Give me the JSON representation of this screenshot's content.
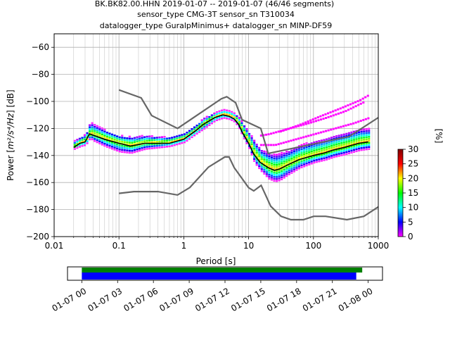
{
  "title": {
    "line1": "BK.BK82.00.HHN   2019-01-07 -- 2019-01-07  (46/46 segments)",
    "line2": "sensor_type CMG-3T sensor_sn T310034",
    "line3": "datalogger_type GuralpMinimus+ datalogger_sn MINP-DF59"
  },
  "chart_data": {
    "type": "heatmap",
    "xlabel": "Period [s]",
    "ylabel_prefix": "Power [",
    "ylabel_unit": "m²/s⁴/Hz",
    "ylabel_suffix": "] [dB]",
    "xscale": "log",
    "xlim": [
      0.01,
      1000
    ],
    "ylim": [
      -200,
      -50
    ],
    "x_ticks": [
      {
        "value": 0.01,
        "label": "0.01"
      },
      {
        "value": 0.1,
        "label": "0.1"
      },
      {
        "value": 1,
        "label": "1"
      },
      {
        "value": 10,
        "label": "10"
      },
      {
        "value": 100,
        "label": "100"
      },
      {
        "value": 1000,
        "label": "1000"
      }
    ],
    "y_ticks": [
      {
        "value": -60,
        "label": "−60"
      },
      {
        "value": -80,
        "label": "−80"
      },
      {
        "value": -100,
        "label": "−100"
      },
      {
        "value": -120,
        "label": "−120"
      },
      {
        "value": -140,
        "label": "−140"
      },
      {
        "value": -160,
        "label": "−160"
      },
      {
        "value": -180,
        "label": "−180"
      },
      {
        "value": -200,
        "label": "−200"
      }
    ],
    "grid": true,
    "noise_models": {
      "color": "#666666",
      "high": {
        "x": [
          0.1,
          0.22,
          0.32,
          0.8,
          3.8,
          4.6,
          6.3,
          7.9,
          15.4,
          20,
          354.8,
          1000
        ],
        "y": [
          -91.5,
          -97.4,
          -110.5,
          -120,
          -98,
          -96.5,
          -101,
          -113.5,
          -120,
          -138.5,
          -126,
          -112
        ]
      },
      "low": {
        "x": [
          0.1,
          0.17,
          0.4,
          0.8,
          1.24,
          2.4,
          4.3,
          5,
          6,
          10,
          12,
          15.6,
          21.9,
          31.6,
          45,
          70,
          101,
          154,
          328,
          600,
          1000
        ],
        "y": [
          -168,
          -166.7,
          -166.7,
          -169.2,
          -163.7,
          -148.6,
          -141.1,
          -141.1,
          -149,
          -163.8,
          -166.2,
          -162.1,
          -177.5,
          -185,
          -187.5,
          -187.5,
          -185,
          -185,
          -187.5,
          -185,
          -178
        ]
      }
    },
    "median": {
      "color": "#000000",
      "x": [
        0.02,
        0.025,
        0.03,
        0.035,
        0.04,
        0.06,
        0.1,
        0.15,
        0.25,
        0.4,
        0.6,
        1,
        1.5,
        2,
        3,
        4,
        5,
        6,
        7,
        8,
        10,
        12,
        15,
        20,
        25,
        30,
        40,
        60,
        100,
        150,
        200,
        300,
        500,
        700
      ],
      "y": [
        -134,
        -131,
        -130,
        -124,
        -125,
        -128,
        -131,
        -133,
        -131,
        -131,
        -131,
        -128,
        -122,
        -117,
        -112,
        -110,
        -111,
        -113,
        -117,
        -123,
        -131,
        -139,
        -145,
        -149,
        -151,
        -150,
        -147,
        -143,
        -140,
        -138,
        -136,
        -134,
        -131,
        -130
      ]
    },
    "ppsd_spread": {
      "x": [
        0.02,
        0.025,
        0.03,
        0.035,
        0.04,
        0.06,
        0.1,
        0.15,
        0.25,
        0.4,
        0.6,
        1,
        1.5,
        2,
        3,
        4,
        5,
        6,
        7,
        8,
        10,
        12,
        15,
        20,
        25,
        30,
        40,
        60,
        100,
        150,
        200,
        300,
        500,
        700
      ],
      "upper": [
        -130,
        -127,
        -125,
        -116,
        -118,
        -122,
        -126,
        -127,
        -126,
        -127,
        -127,
        -124,
        -118,
        -113,
        -109,
        -107,
        -108,
        -110,
        -113,
        -117,
        -124,
        -130,
        -136,
        -139,
        -140,
        -139,
        -137,
        -133,
        -130,
        -128,
        -126,
        -124,
        -121,
        -121
      ],
      "lower": [
        -136,
        -134,
        -133,
        -128,
        -130,
        -134,
        -138,
        -139,
        -136,
        -135,
        -134,
        -131,
        -125,
        -121,
        -115,
        -113,
        -114,
        -116,
        -121,
        -127,
        -136,
        -146,
        -152,
        -158,
        -160,
        -159,
        -155,
        -150,
        -146,
        -144,
        -142,
        -140,
        -137,
        -136
      ]
    },
    "excursions": [
      {
        "x": [
          15,
          20,
          40,
          80,
          150,
          300,
          600
        ],
        "y": [
          -126,
          -125,
          -121,
          -117,
          -113,
          -108,
          -101
        ]
      },
      {
        "x": [
          15,
          25,
          50,
          100,
          200,
          400,
          700
        ],
        "y": [
          -133,
          -133,
          -129,
          -125,
          -121,
          -117,
          -113
        ]
      },
      {
        "x": [
          30,
          60,
          120,
          250,
          500,
          700
        ],
        "y": [
          -123,
          -118,
          -112,
          -106,
          -100,
          -96
        ]
      }
    ],
    "colorbar": {
      "label": "[%]",
      "min": 0,
      "max": 30,
      "ticks": [
        {
          "value": 0,
          "label": "0"
        },
        {
          "value": 5,
          "label": "5"
        },
        {
          "value": 10,
          "label": "10"
        },
        {
          "value": 15,
          "label": "15"
        },
        {
          "value": 20,
          "label": "20"
        },
        {
          "value": 25,
          "label": "25"
        },
        {
          "value": 30,
          "label": "30"
        }
      ],
      "colors": [
        "#ffffff",
        "#ff00ff",
        "#0000ff",
        "#00ffff",
        "#00ff00",
        "#ffff00",
        "#ff0000",
        "#800000"
      ]
    },
    "timeline": {
      "ticks": [
        {
          "value": 0,
          "label": "01-07 00"
        },
        {
          "value": 3,
          "label": "01-07 03"
        },
        {
          "value": 6,
          "label": "01-07 06"
        },
        {
          "value": 9,
          "label": "01-07 09"
        },
        {
          "value": 12,
          "label": "01-07 12"
        },
        {
          "value": 15,
          "label": "01-07 15"
        },
        {
          "value": 18,
          "label": "01-07 18"
        },
        {
          "value": 21,
          "label": "01-07 21"
        },
        {
          "value": 24,
          "label": "01-08 00"
        }
      ],
      "range_hours": [
        -1.2,
        25.2
      ],
      "data_bar": {
        "color": "#008000",
        "start": 0,
        "end": 23.5
      },
      "psd_bar": {
        "color": "#0000ff",
        "start": 0,
        "end": 23
      }
    }
  }
}
